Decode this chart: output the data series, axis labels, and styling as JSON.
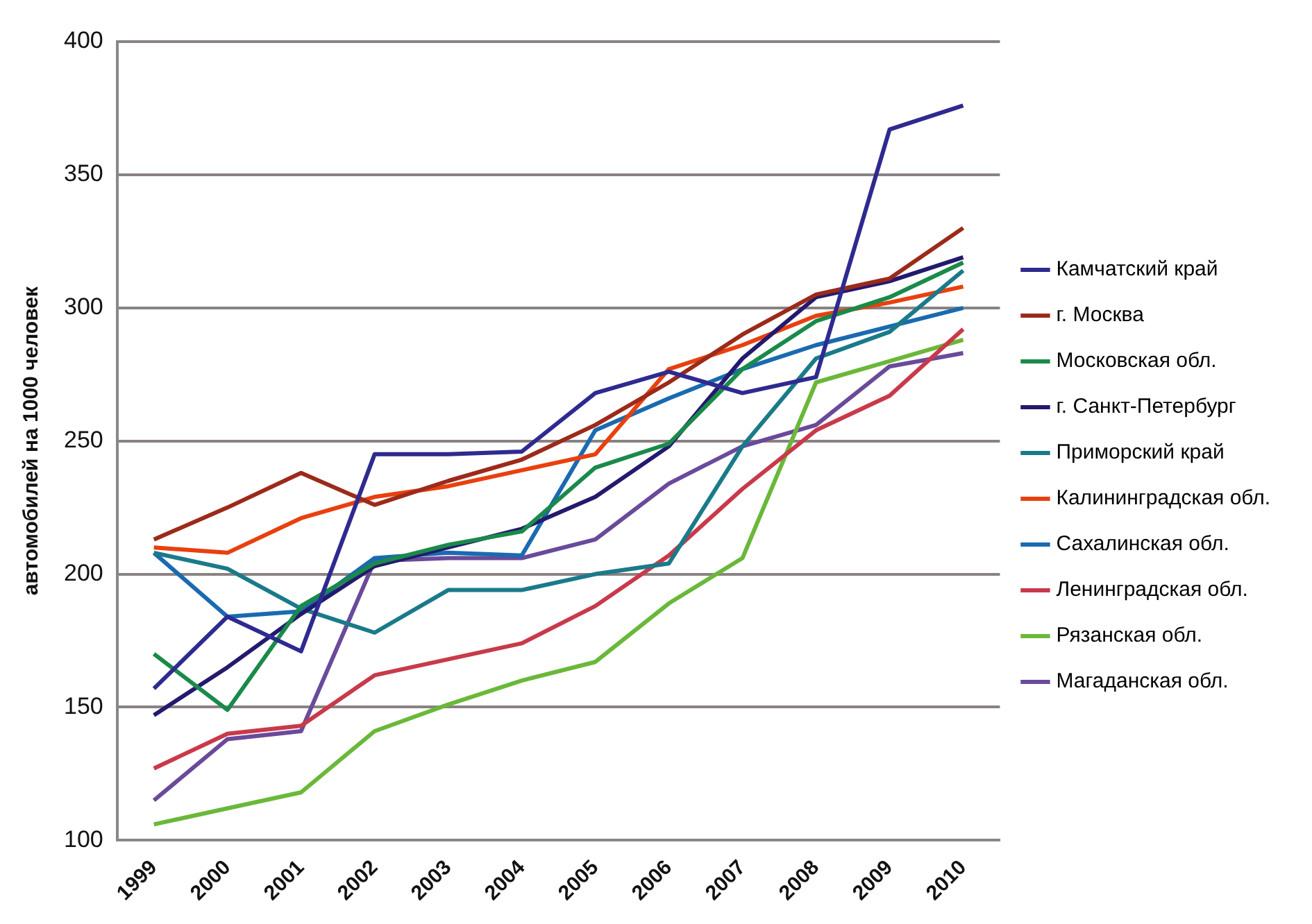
{
  "chart_data": {
    "type": "line",
    "ylabel": "автомобилей на 1000 человек",
    "categories": [
      "1999",
      "2000",
      "2001",
      "2002",
      "2003",
      "2004",
      "2005",
      "2006",
      "2007",
      "2008",
      "2009",
      "2010"
    ],
    "ylim": [
      100,
      400
    ],
    "yticks": [
      100,
      150,
      200,
      250,
      300,
      350,
      400
    ],
    "grid": "y",
    "legend": "right",
    "marker": "none",
    "line_style": "solid",
    "series": [
      {
        "name": "Камчатский край",
        "color": "#2e2a8f",
        "values": [
          157,
          184,
          171,
          245,
          245,
          246,
          268,
          276,
          268,
          274,
          367,
          376
        ]
      },
      {
        "name": "г. Москва",
        "color": "#9c2a1a",
        "values": [
          213,
          225,
          238,
          226,
          235,
          243,
          256,
          272,
          290,
          305,
          311,
          330
        ]
      },
      {
        "name": "Московская обл.",
        "color": "#1a8a4a",
        "values": [
          170,
          149,
          188,
          204,
          211,
          216,
          240,
          249,
          277,
          295,
          304,
          317
        ]
      },
      {
        "name": "г. Санкт-Петербург",
        "color": "#231a6e",
        "values": [
          147,
          165,
          185,
          203,
          210,
          217,
          229,
          248,
          281,
          304,
          310,
          319
        ]
      },
      {
        "name": "Приморский край",
        "color": "#1a7a8a",
        "values": [
          208,
          202,
          187,
          178,
          194,
          194,
          200,
          204,
          248,
          281,
          291,
          314
        ]
      },
      {
        "name": "Калининградская обл.",
        "color": "#e8400f",
        "values": [
          210,
          208,
          221,
          229,
          233,
          239,
          245,
          277,
          286,
          297,
          302,
          308
        ]
      },
      {
        "name": "Сахалинская обл.",
        "color": "#1a6ab0",
        "values": [
          208,
          184,
          186,
          206,
          208,
          207,
          254,
          266,
          277,
          286,
          293,
          300
        ]
      },
      {
        "name": "Ленинградская обл.",
        "color": "#c83a4a",
        "values": [
          127,
          140,
          143,
          162,
          168,
          174,
          188,
          207,
          232,
          254,
          267,
          292
        ]
      },
      {
        "name": "Рязанская обл.",
        "color": "#6ab83a",
        "values": [
          106,
          112,
          118,
          141,
          151,
          160,
          167,
          189,
          206,
          272,
          280,
          288
        ]
      },
      {
        "name": "Магаданская обл.",
        "color": "#6a4a9a",
        "values": [
          115,
          138,
          141,
          205,
          206,
          206,
          213,
          234,
          248,
          256,
          278,
          283
        ]
      }
    ]
  }
}
